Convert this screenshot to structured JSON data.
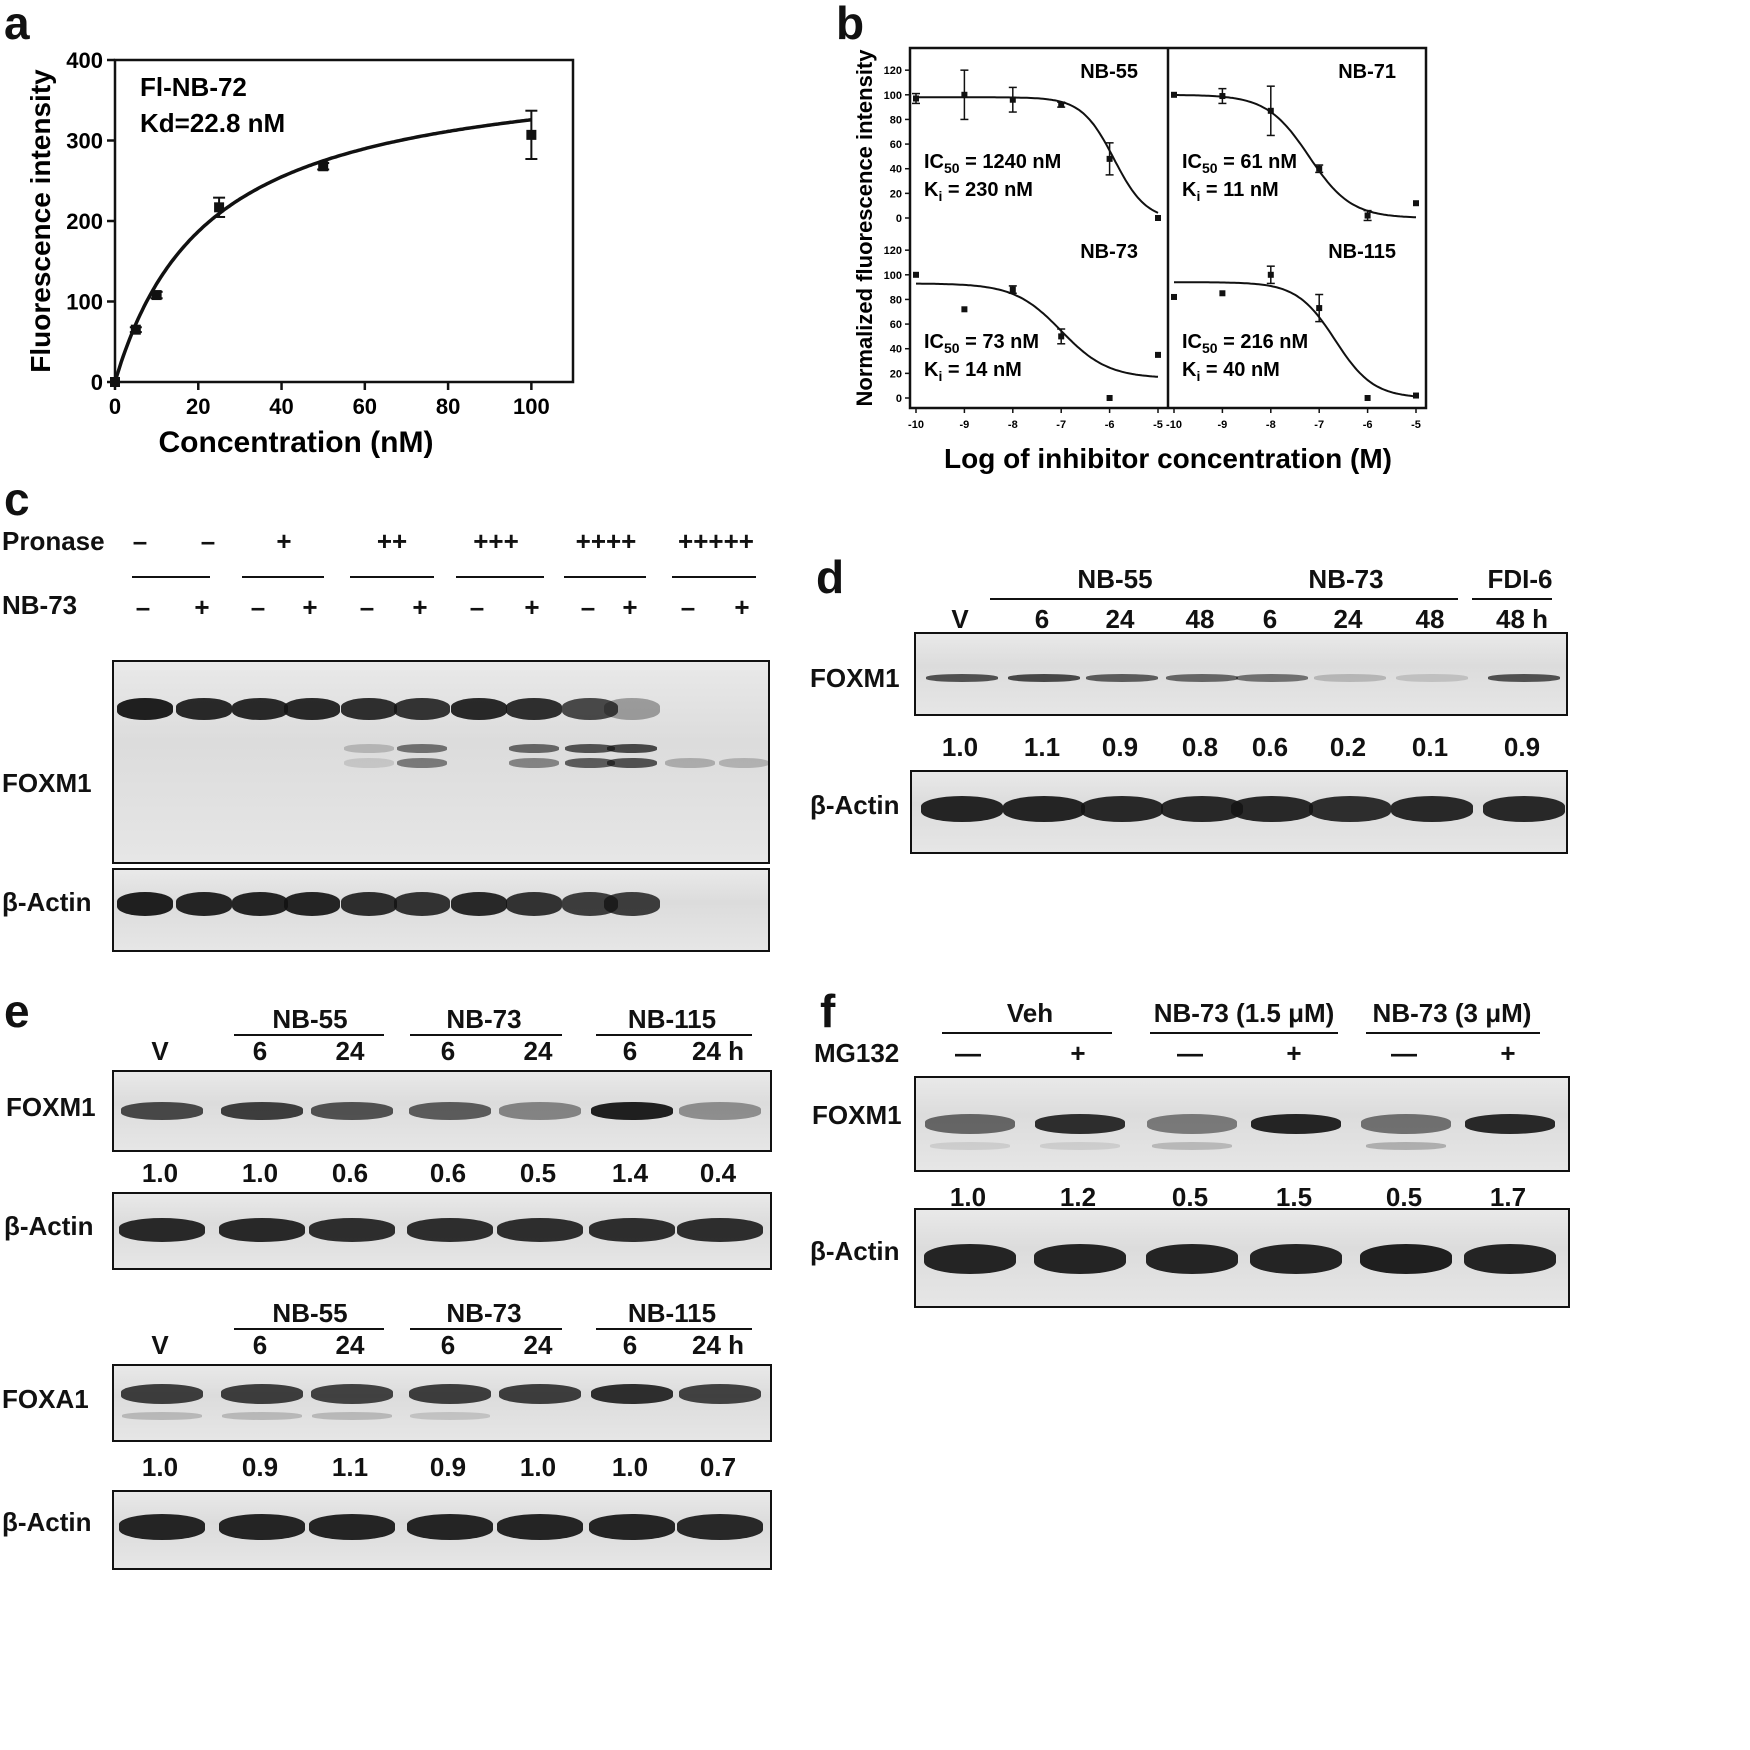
{
  "panel_letters": {
    "a": "a",
    "b": "b",
    "c": "c",
    "d": "d",
    "e": "e",
    "f": "f"
  },
  "chart_data": [
    {
      "type": "scatter",
      "panel": "a",
      "annotation_1": "Fl-NB-72",
      "annotation_2": "Kd=22.8 nM",
      "xlabel": "Concentration (nM)",
      "ylabel": "Fluorescence intensity",
      "xlim": [
        0,
        110
      ],
      "ylim": [
        0,
        400
      ],
      "x_ticks": [
        "0",
        "20",
        "40",
        "60",
        "80",
        "100"
      ],
      "y_ticks": [
        "0",
        "100",
        "200",
        "300",
        "400"
      ],
      "points": [
        {
          "x": 0,
          "y": 0,
          "err": 0
        },
        {
          "x": 5,
          "y": 65,
          "err": 3
        },
        {
          "x": 10,
          "y": 108,
          "err": 4
        },
        {
          "x": 25,
          "y": 217,
          "err": 12
        },
        {
          "x": 50,
          "y": 268,
          "err": 4
        },
        {
          "x": 100,
          "y": 307,
          "err": 30
        }
      ],
      "fit": {
        "model": "one-site binding",
        "bmax": 400,
        "kd": 22.8
      }
    },
    {
      "type": "line",
      "panel": "b",
      "xlabel": "Log of inhibitor concentration (M)",
      "ylabel": "Normalized fluorescence intensity",
      "x_ticks": [
        "-10",
        "-9",
        "-8",
        "-7",
        "-6",
        "-5"
      ],
      "y_ticks": [
        "0",
        "20",
        "40",
        "60",
        "80",
        "100",
        "120"
      ],
      "xlim": [
        -10,
        -5
      ],
      "ylim": [
        0,
        125
      ],
      "subplots": [
        {
          "name": "NB-55",
          "ic50": "IC",
          "ic50_sub": "50",
          "ic50_val": " = 1240 nM",
          "ki": "K",
          "ki_sub": "i",
          "ki_val": " = 230 nM",
          "points": [
            {
              "x": -10,
              "y": 97,
              "err": 4
            },
            {
              "x": -9,
              "y": 100,
              "err": 20
            },
            {
              "x": -8,
              "y": 96,
              "err": 10
            },
            {
              "x": -7,
              "y": 92,
              "err": 2
            },
            {
              "x": -6,
              "y": 48,
              "err": 13
            },
            {
              "x": -5,
              "y": 0,
              "err": 0
            }
          ],
          "fit": {
            "top": 98,
            "bottom": -2,
            "logic50": -5.91,
            "hill": 1.3
          }
        },
        {
          "name": "NB-71",
          "ic50": "IC",
          "ic50_sub": "50",
          "ic50_val": " = 61 nM",
          "ki": "K",
          "ki_sub": "i",
          "ki_val": " = 11 nM",
          "points": [
            {
              "x": -10,
              "y": 100,
              "err": 0
            },
            {
              "x": -9,
              "y": 99,
              "err": 6
            },
            {
              "x": -8,
              "y": 87,
              "err": 20
            },
            {
              "x": -7,
              "y": 40,
              "err": 3
            },
            {
              "x": -6,
              "y": 2,
              "err": 4
            },
            {
              "x": -5,
              "y": 12,
              "err": 0
            }
          ],
          "fit": {
            "top": 100,
            "bottom": 0,
            "logic50": -7.21,
            "hill": 1.0
          }
        },
        {
          "name": "NB-73",
          "ic50": "IC",
          "ic50_sub": "50",
          "ic50_val": " = 73 nM",
          "ki": "K",
          "ki_sub": "i",
          "ki_val": " = 14 nM",
          "points": [
            {
              "x": -10,
              "y": 100,
              "err": 0
            },
            {
              "x": -9,
              "y": 72,
              "err": 0
            },
            {
              "x": -8,
              "y": 88,
              "err": 3
            },
            {
              "x": -7,
              "y": 50,
              "err": 6
            },
            {
              "x": -6,
              "y": 0,
              "err": 0
            },
            {
              "x": -5,
              "y": 35,
              "err": 0
            }
          ],
          "fit": {
            "top": 93,
            "bottom": 16,
            "logic50": -7.0,
            "hill": 0.9
          }
        },
        {
          "name": "NB-115",
          "ic50": "IC",
          "ic50_sub": "50",
          "ic50_val": " = 216 nM",
          "ki": "K",
          "ki_sub": "i",
          "ki_val": " = 40 nM",
          "points": [
            {
              "x": -10,
              "y": 82,
              "err": 0
            },
            {
              "x": -9,
              "y": 85,
              "err": 0
            },
            {
              "x": -8,
              "y": 100,
              "err": 7
            },
            {
              "x": -7,
              "y": 73,
              "err": 11
            },
            {
              "x": -6,
              "y": 0,
              "err": 0
            },
            {
              "x": -5,
              "y": 2,
              "err": 0
            }
          ],
          "fit": {
            "top": 94,
            "bottom": 0,
            "logic50": -6.67,
            "hill": 1.1
          }
        }
      ]
    }
  ],
  "panel_c": {
    "pronase_label": "Pronase",
    "nb73_label": "NB-73",
    "pronase_levels": [
      "–",
      "–",
      "+",
      "++",
      "+++",
      "++++",
      "+++++"
    ],
    "nb73_signs": [
      "–",
      "+",
      "–",
      "+",
      "–",
      "+",
      "–",
      "+",
      "–",
      "+",
      "–",
      "+"
    ],
    "foxm1_label": "FOXM1",
    "actin_label": "β-Actin"
  },
  "panel_d": {
    "v_label": "V",
    "groups": [
      {
        "name": "NB-55",
        "times": [
          "6",
          "24",
          "48"
        ]
      },
      {
        "name": "NB-73",
        "times": [
          "6",
          "24",
          "48"
        ]
      },
      {
        "name": "FDI-6",
        "times": [
          "48 h"
        ]
      }
    ],
    "foxm1_label": "FOXM1",
    "actin_label": "β-Actin",
    "quant": [
      "1.0",
      "1.1",
      "0.9",
      "0.8",
      "0.6",
      "0.2",
      "0.1",
      "0.9"
    ]
  },
  "panel_e": {
    "v_label": "V",
    "groups": [
      {
        "name": "NB-55",
        "times": [
          "6",
          "24"
        ]
      },
      {
        "name": "NB-73",
        "times": [
          "6",
          "24"
        ]
      },
      {
        "name": "NB-115",
        "times": [
          "6",
          "24 h"
        ]
      }
    ],
    "foxm1_label": "FOXM1",
    "foxa1_label": "FOXA1",
    "actin_label": "β-Actin",
    "quant_foxm1": [
      "1.0",
      "1.0",
      "0.6",
      "0.6",
      "0.5",
      "1.4",
      "0.4"
    ],
    "quant_foxa1": [
      "1.0",
      "0.9",
      "1.1",
      "0.9",
      "1.0",
      "1.0",
      "0.7"
    ]
  },
  "panel_f": {
    "groups": [
      "Veh",
      "NB-73 (1.5 μM)",
      "NB-73 (3 μM)"
    ],
    "mg132_label": "MG132",
    "mg132_signs": [
      "—",
      "+",
      "—",
      "+",
      "—",
      "+"
    ],
    "foxm1_label": "FOXM1",
    "actin_label": "β-Actin",
    "quant": [
      "1.0",
      "1.2",
      "0.5",
      "1.5",
      "0.5",
      "1.7"
    ]
  },
  "colors": {
    "ink": "#111111",
    "blot_bg": "#e2e2e2",
    "band": "#1a1a1a"
  }
}
